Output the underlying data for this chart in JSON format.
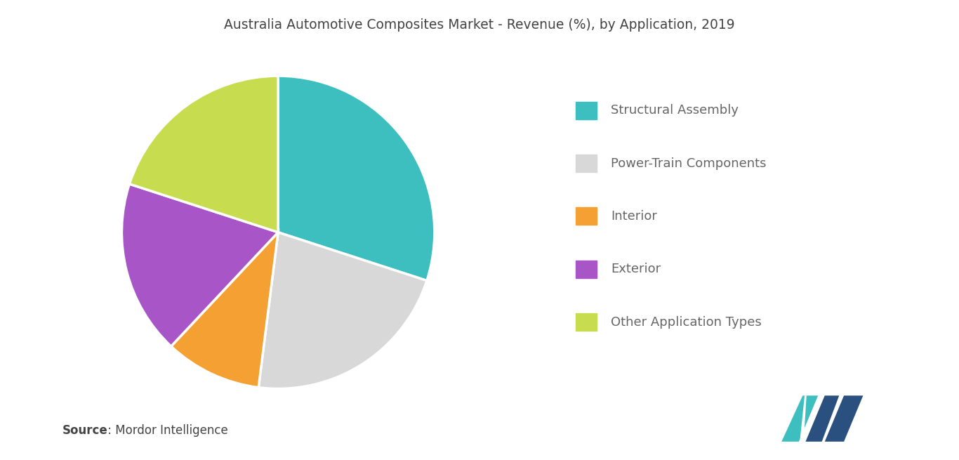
{
  "title": "Australia Automotive Composites Market - Revenue (%), by Application, 2019",
  "labels": [
    "Structural Assembly",
    "Power-Train Components",
    "Interior",
    "Exterior",
    "Other Application Types"
  ],
  "values": [
    30,
    22,
    10,
    18,
    20
  ],
  "colors": [
    "#3dbfbf",
    "#d8d8d8",
    "#f5a033",
    "#a855c8",
    "#c8dc50"
  ],
  "legend_labels": [
    "Structural Assembly",
    "Power-Train Components",
    "Interior",
    "Exterior",
    "Other Application Types"
  ],
  "source_bold": "Source",
  "source_normal": " : Mordor Intelligence",
  "background_color": "#ffffff",
  "title_fontsize": 13.5,
  "legend_fontsize": 13,
  "source_fontsize": 12,
  "startangle": 90
}
